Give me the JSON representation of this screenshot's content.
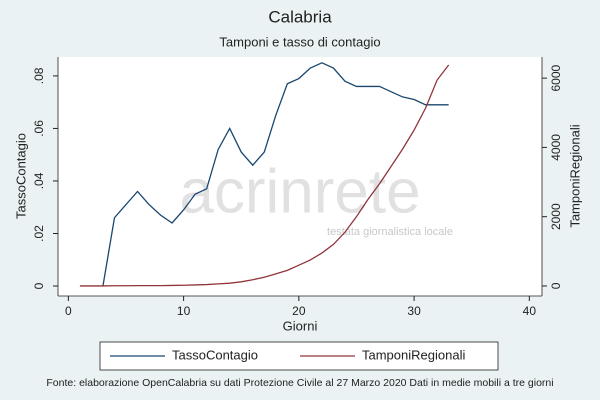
{
  "chart_data": {
    "type": "line",
    "title": "Calabria",
    "subtitle": "Tamponi e tasso di contagio",
    "xlabel": "Giorni",
    "ylabel": "TassoContagio",
    "y2label": "TamponiRegionali",
    "note": "Fonte: elaborazione OpenCalabria su dati Protezione Civile al 27 Marzo 2020 Dati in medie mobili a tre giorni",
    "annotations": [
      "acrinrete",
      "testata giornalistica locale"
    ],
    "x": [
      1,
      2,
      3,
      4,
      5,
      6,
      7,
      8,
      9,
      10,
      11,
      12,
      13,
      14,
      15,
      16,
      17,
      18,
      19,
      20,
      21,
      22,
      23,
      24,
      25,
      26,
      27,
      28,
      29,
      30,
      31,
      32,
      33
    ],
    "series": [
      {
        "name": "TassoContagio",
        "color": "#1a476f",
        "values": [
          null,
          null,
          0,
          0.026,
          0.031,
          0.036,
          0.031,
          0.027,
          0.024,
          0.029,
          0.035,
          0.037,
          0.052,
          0.06,
          0.051,
          0.046,
          0.051,
          0.065,
          0.077,
          0.079,
          0.083,
          0.085,
          0.083,
          0.078,
          0.076,
          0.076,
          0.076,
          0.074,
          0.072,
          0.071,
          0.069,
          0.069,
          0.069
        ]
      },
      {
        "name": "TamponiRegionali",
        "color": "#90353b",
        "axis": "y2",
        "values": [
          0,
          0,
          0,
          5,
          5,
          10,
          10,
          10,
          15,
          20,
          30,
          40,
          60,
          80,
          120,
          180,
          250,
          350,
          450,
          600,
          750,
          950,
          1200,
          1550,
          2000,
          2500,
          2950,
          3450,
          3950,
          4500,
          5137,
          5945,
          6378
        ]
      }
    ],
    "xlim": [
      -0.9,
      41.1
    ],
    "xticks": [
      0,
      10,
      20,
      30,
      40
    ],
    "ylim": [
      -0.0038,
      0.0872
    ],
    "yticks": [
      0,
      {
        "value": 0.02,
        "label": ".02"
      },
      {
        "value": 0.04,
        "label": ".04"
      },
      {
        "value": 0.06,
        "label": ".06"
      },
      {
        "value": 0.08,
        "label": ".08"
      }
    ],
    "y2lim": [
      -290,
      6610
    ],
    "y2ticks": [
      0,
      2000,
      4000,
      6000
    ],
    "legend": "bottom"
  }
}
